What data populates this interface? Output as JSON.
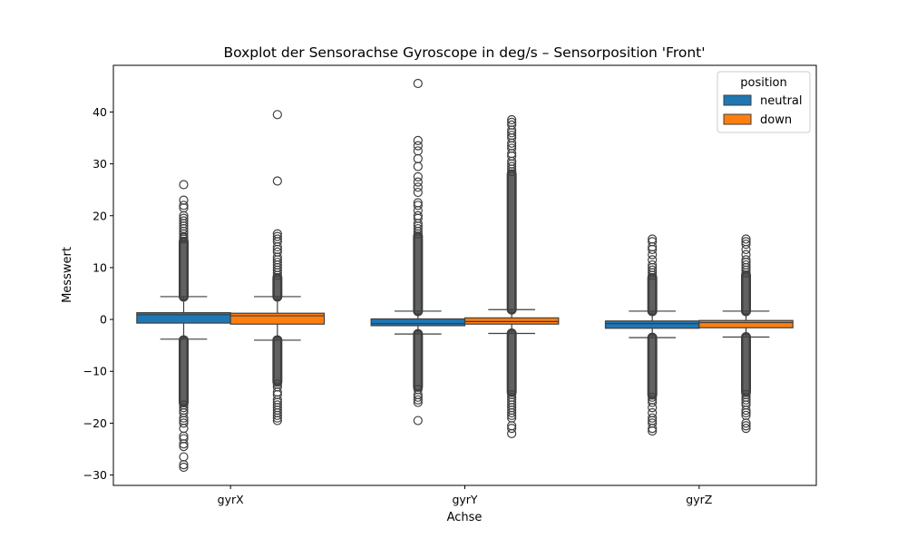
{
  "chart_data": {
    "type": "boxplot",
    "title": "Boxplot der Sensorachse Gyroscope in deg/s – Sensorposition 'Front'",
    "xlabel": "Achse",
    "ylabel": "Messwert",
    "categories": [
      "gyrX",
      "gyrY",
      "gyrZ"
    ],
    "ylim": [
      -32,
      49
    ],
    "yticks": [
      -30,
      -20,
      -10,
      0,
      10,
      20,
      30,
      40
    ],
    "ytick_labels": [
      "−30",
      "−20",
      "−10",
      "0",
      "10",
      "20",
      "30",
      "40"
    ],
    "grid": false,
    "legend": {
      "title": "position",
      "placement": "top-right"
    },
    "series": [
      {
        "name": "neutral",
        "color": "#1f77b4",
        "boxes": [
          {
            "category": "gyrX",
            "whisker_low": -3.8,
            "q1": -0.7,
            "median": 0.9,
            "q3": 1.3,
            "whisker_high": 4.4,
            "outlier_bands": [
              [
                4.4,
                15
              ],
              [
                -4,
                -16
              ]
            ],
            "outliers": [
              26,
              23,
              22,
              21.5,
              20,
              19.5,
              19,
              18.5,
              18,
              17.5,
              17,
              16.5,
              16,
              15.8,
              15.5,
              -16.5,
              -17,
              -17.5,
              -18,
              -19,
              -19.5,
              -20,
              -21,
              -22.5,
              -23,
              -24,
              -24.5,
              -26.5,
              -28,
              -28.5
            ]
          },
          {
            "category": "gyrY",
            "whisker_low": -2.8,
            "q1": -1.2,
            "median": -0.8,
            "q3": 0.1,
            "whisker_high": 1.6,
            "outlier_bands": [
              [
                1.6,
                16
              ],
              [
                -2.8,
                -13
              ]
            ],
            "outliers": [
              45.5,
              34.5,
              33.5,
              32.5,
              31,
              29.5,
              27.5,
              26.5,
              25.5,
              24.5,
              22.5,
              22,
              21,
              20,
              19.5,
              18.5,
              18,
              17.5,
              17,
              16.5,
              -13.5,
              -14.5,
              -15,
              -15.5,
              -16,
              -19.5
            ]
          },
          {
            "category": "gyrZ",
            "whisker_low": -3.5,
            "q1": -1.7,
            "median": -0.8,
            "q3": -0.3,
            "whisker_high": 1.6,
            "outlier_bands": [
              [
                1.6,
                8
              ],
              [
                -3.5,
                -14.5
              ]
            ],
            "outliers": [
              15.5,
              15,
              14,
              13.5,
              12.5,
              11.5,
              10.5,
              10,
              9.5,
              9,
              8.5,
              -15,
              -15.5,
              -16,
              -17,
              -18,
              -19,
              -19.5,
              -20,
              -21,
              -21.5
            ]
          }
        ]
      },
      {
        "name": "down",
        "color": "#ff7f0e",
        "boxes": [
          {
            "category": "gyrX",
            "whisker_low": -4.0,
            "q1": -0.9,
            "median": 0.7,
            "q3": 1.2,
            "whisker_high": 4.4,
            "outlier_bands": [
              [
                4.4,
                8
              ],
              [
                -4,
                -12
              ]
            ],
            "outliers": [
              39.5,
              26.7,
              16.5,
              16,
              15.5,
              15,
              14,
              13.5,
              13,
              12,
              11.5,
              11,
              10.5,
              10,
              9.5,
              9,
              8.5,
              -12.5,
              -13,
              -14,
              -14.5,
              -15.5,
              -16,
              -16.5,
              -17,
              -17.5,
              -18,
              -18.5,
              -19,
              -19.5
            ]
          },
          {
            "category": "gyrY",
            "whisker_low": -2.7,
            "q1": -0.9,
            "median": -0.4,
            "q3": 0.3,
            "whisker_high": 1.9,
            "outlier_bands": [
              [
                1.9,
                28
              ],
              [
                -2.7,
                -14
              ]
            ],
            "outliers": [
              38.5,
              38,
              37.5,
              36.5,
              36,
              35.5,
              35,
              34,
              33.5,
              33,
              32,
              31.5,
              30.5,
              30,
              29.5,
              29,
              28.5,
              -14.5,
              -15,
              -15.5,
              -16,
              -16.5,
              -17,
              -17.5,
              -18,
              -18.5,
              -19,
              -20.5,
              -21,
              -22
            ]
          },
          {
            "category": "gyrZ",
            "whisker_low": -3.4,
            "q1": -1.6,
            "median": -0.6,
            "q3": -0.2,
            "whisker_high": 1.6,
            "outlier_bands": [
              [
                1.6,
                8.5
              ],
              [
                -3.4,
                -14
              ]
            ],
            "outliers": [
              15.5,
              15,
              14.5,
              13.5,
              12.5,
              11.5,
              11,
              10.5,
              10,
              9.5,
              9,
              -14.5,
              -15,
              -15.5,
              -16,
              -16.5,
              -17.5,
              -18,
              -18.5,
              -20,
              -20.5,
              -21
            ]
          }
        ]
      }
    ]
  }
}
